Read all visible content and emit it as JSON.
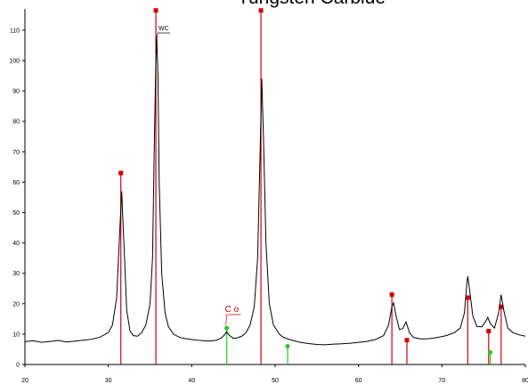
{
  "chart_data": {
    "type": "line",
    "title": "Tungsten Carbide",
    "x": [
      20,
      21,
      22,
      23,
      24,
      25,
      26,
      27,
      28,
      29,
      30,
      30.5,
      31,
      31.3,
      31.6,
      31.9,
      32.2,
      32.6,
      33,
      33.5,
      34,
      34.5,
      35,
      35.3,
      35.5,
      35.7,
      35.8,
      35.95,
      36.1,
      36.4,
      36.8,
      37.2,
      37.8,
      38.5,
      39,
      40,
      41,
      42,
      43,
      43.6,
      44,
      44.2,
      44.5,
      45,
      45.5,
      46,
      46.5,
      47,
      47.5,
      47.9,
      48.2,
      48.4,
      48.6,
      48.9,
      49.3,
      49.8,
      50.5,
      51,
      52,
      53,
      54,
      55,
      56,
      57,
      58,
      59,
      60,
      61,
      62,
      63,
      63.6,
      64.0,
      64.2,
      64.5,
      64.9,
      65.3,
      65.7,
      66.1,
      66.6,
      67.5,
      68.5,
      69.5,
      70.5,
      71.5,
      72.2,
      72.7,
      73.0,
      73.1,
      73.3,
      73.7,
      74.2,
      74.8,
      75.2,
      75.5,
      75.8,
      76.3,
      76.8,
      77.1,
      77.4,
      77.9,
      78.5,
      79.2,
      80
    ],
    "values": [
      7.5,
      7.8,
      7.3,
      7.6,
      7.9,
      7.4,
      7.7,
      8.0,
      8.3,
      9.0,
      10.5,
      13,
      22,
      40,
      57,
      38,
      18,
      11,
      9.5,
      9.3,
      10.5,
      13,
      20,
      35,
      70,
      100,
      108,
      95,
      60,
      30,
      17,
      12.5,
      10,
      9,
      8.6,
      8.2,
      7.9,
      7.7,
      8.0,
      8.8,
      10,
      10.8,
      9.6,
      8.6,
      8.8,
      9.3,
      10.5,
      13,
      19,
      35,
      70,
      94,
      75,
      40,
      20,
      13,
      10,
      8.9,
      8.0,
      7.3,
      6.9,
      6.6,
      6.5,
      6.7,
      6.8,
      7.0,
      7.3,
      7.6,
      8.2,
      9.5,
      13,
      19,
      20.3,
      16,
      11.5,
      11.8,
      14,
      10.5,
      8.9,
      8.4,
      8.5,
      8.9,
      9.5,
      10.5,
      12,
      17,
      27,
      29,
      25,
      16,
      12.5,
      12.4,
      14,
      15.5,
      13.5,
      12,
      17,
      23,
      18,
      12,
      10.5,
      9.8,
      9.3
    ],
    "color": "#000000",
    "reference_patterns": [
      {
        "label": "WC",
        "color": "#d40000",
        "positions": [
          31.5,
          35.7,
          48.3,
          64.0,
          65.8,
          73.1,
          75.6,
          77.1
        ],
        "heights": [
          63,
          116.5,
          116.5,
          23,
          8,
          22,
          11,
          19
        ]
      },
      {
        "label": "C o",
        "color": "#22cc22",
        "positions": [
          44.2,
          51.5,
          75.8
        ],
        "heights": [
          12,
          6,
          4
        ]
      }
    ],
    "xlim": [
      20,
      80
    ],
    "xticks": [
      20,
      30,
      40,
      50,
      60,
      70,
      80
    ],
    "ylim": [
      0,
      117
    ],
    "yticks": [
      0,
      10,
      20,
      30,
      40,
      50,
      60,
      70,
      80,
      90,
      100,
      110
    ]
  }
}
